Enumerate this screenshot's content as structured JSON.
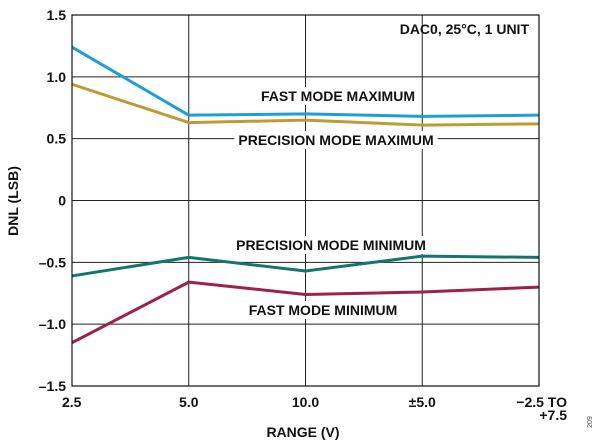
{
  "chart_data": {
    "type": "line",
    "categories": [
      "2.5",
      "5.0",
      "10.0",
      "±5.0",
      "−2.5 TO +7.5"
    ],
    "category_lines": [
      [
        "2.5"
      ],
      [
        "5.0"
      ],
      [
        "10.0"
      ],
      [
        "±5.0"
      ],
      [
        "−2.5 TO",
        "+7.5"
      ]
    ],
    "series": [
      {
        "name": "FAST MODE MAXIMUM",
        "values": [
          1.24,
          0.69,
          0.7,
          0.68,
          0.69
        ],
        "color": "#1e9ed5"
      },
      {
        "name": "PRECISION MODE MAXIMUM",
        "values": [
          0.94,
          0.63,
          0.65,
          0.61,
          0.62
        ],
        "color": "#c19a33"
      },
      {
        "name": "PRECISION MODE MINIMUM",
        "values": [
          -0.61,
          -0.46,
          -0.57,
          -0.45,
          -0.46
        ],
        "color": "#13766a"
      },
      {
        "name": "FAST MODE MINIMUM",
        "values": [
          -1.15,
          -0.66,
          -0.76,
          -0.74,
          -0.7
        ],
        "color": "#9c2248"
      }
    ],
    "ylim": [
      -1.5,
      1.5
    ],
    "yticks": [
      1.5,
      1.0,
      0.5,
      0,
      -0.5,
      -1.0,
      -1.5
    ],
    "ytick_labels": [
      "1.5",
      "1.0",
      "0.5",
      "0",
      "–0.5",
      "–1.0",
      "–1.5"
    ],
    "xlabel": "RANGE (V)",
    "ylabel": "DNL (LSB)",
    "annotation": "DAC0, 25°C, 1 UNIT",
    "figure_id": "209",
    "grid": true,
    "legend": "inline labels"
  }
}
